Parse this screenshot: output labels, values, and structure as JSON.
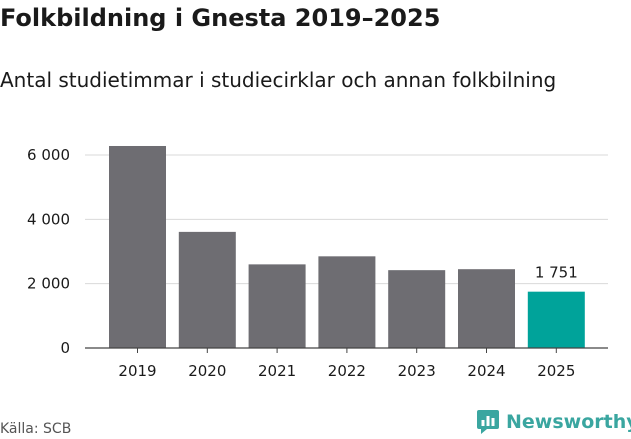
{
  "header": {
    "title": "Folkbildning i Gnesta 2019–2025",
    "subtitle": "Antal studietimmar i studiecirklar och annan folkbilning"
  },
  "footer": {
    "source": "Källa: SCB",
    "brand": "Newsworthy"
  },
  "colors": {
    "bar": "#6e6d72",
    "highlight": "#00a39a",
    "grid": "#d9d9d9",
    "axis": "#444444",
    "brand": "#3aa6a0"
  },
  "chart_data": {
    "type": "bar",
    "categories": [
      "2019",
      "2020",
      "2021",
      "2022",
      "2023",
      "2024",
      "2025"
    ],
    "values": [
      6280,
      3610,
      2600,
      2850,
      2420,
      2450,
      1751
    ],
    "highlight_index": 6,
    "data_labels": [
      {
        "index": 6,
        "text": "1 751"
      }
    ],
    "yticks": [
      0,
      2000,
      4000,
      6000
    ],
    "ytick_labels": [
      "0",
      "2 000",
      "4 000",
      "6 000"
    ],
    "ylim": [
      0,
      6500
    ],
    "grid": true
  }
}
